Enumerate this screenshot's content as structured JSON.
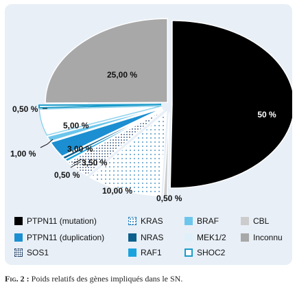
{
  "chart_data": {
    "type": "pie",
    "title": "",
    "slices": [
      {
        "name": "PTPN11 (mutation)",
        "value": 50,
        "label": "50 %",
        "color": "#000000",
        "pattern": "solid"
      },
      {
        "name": "CBL",
        "value": 0.5,
        "label": "0,50 %",
        "color": "#cccccc",
        "pattern": "solid"
      },
      {
        "name": "KRAS",
        "value": 10,
        "label": "10,00 %",
        "color": "#ffffff",
        "pattern": "dots",
        "pattern_color": "#1f7ab8"
      },
      {
        "name": "SOS1",
        "value": 3.5,
        "label": "3,50 %",
        "color": "#ffffff",
        "pattern": "dots",
        "pattern_color": "#1f3f6a"
      },
      {
        "name": "RAF1",
        "value": 0.5,
        "label": "0,50 %",
        "color": "#1aa3dd",
        "pattern": "solid"
      },
      {
        "name": "NRAS",
        "value": 0.5,
        "label": "0,50 %",
        "color": "#0d5f8c",
        "pattern": "solid"
      },
      {
        "name": "PTPN11 (duplication)",
        "value": 3,
        "label": "3,00 %",
        "color": "#1b8fd1",
        "pattern": "solid"
      },
      {
        "name": "BRAF",
        "value": 1,
        "label": "1,00 %",
        "color": "#6cc6ec",
        "pattern": "solid"
      },
      {
        "name": "MEK1/2",
        "value": 5,
        "label": "5,00 %",
        "color": "#ffffff",
        "pattern": "solid"
      },
      {
        "name": "SHOC2",
        "value": 0.5,
        "label": "0,50 %",
        "color": "#ffffff",
        "pattern": "outline",
        "pattern_color": "#1a9bc9"
      },
      {
        "name": "Inconnu",
        "value": 25,
        "label": "25,00 %",
        "color": "#a8a8a8",
        "pattern": "solid"
      }
    ],
    "legend": [
      {
        "name": "PTPN11 (mutation)",
        "color": "#000000",
        "pattern": "solid"
      },
      {
        "name": "KRAS",
        "color": "#ffffff",
        "pattern": "dots"
      },
      {
        "name": "BRAF",
        "color": "#6cc6ec",
        "pattern": "solid"
      },
      {
        "name": "CBL",
        "color": "#cccccc",
        "pattern": "solid"
      },
      {
        "name": "PTPN11 (duplication)",
        "color": "#1b8fd1",
        "pattern": "solid"
      },
      {
        "name": "NRAS",
        "color": "#0d5f8c",
        "pattern": "solid"
      },
      {
        "name": "MEK1/2",
        "color": "#dff0fa",
        "pattern": "solid"
      },
      {
        "name": "Inconnu",
        "color": "#a8a8a8",
        "pattern": "solid"
      },
      {
        "name": "SOS1",
        "color": "#ffffff",
        "pattern": "dots-boxed"
      },
      {
        "name": "RAF1",
        "color": "#1aa3dd",
        "pattern": "solid"
      },
      {
        "name": "SHOC2",
        "color": "#ffffff",
        "pattern": "outline"
      }
    ],
    "legend_position": "bottom"
  },
  "caption": {
    "prefix": "Fig. 2 :",
    "text": " Poids relatifs des gènes impliqués dans le SN."
  }
}
